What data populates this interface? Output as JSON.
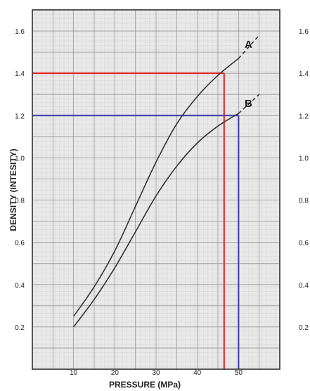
{
  "chart_data": {
    "type": "line",
    "xlabel": "PRESSURE (MPa)",
    "ylabel": "DENSITY (INTESITY)",
    "xlim": [
      0,
      60
    ],
    "ylim": [
      0,
      1.7
    ],
    "x_ticks": [
      {
        "value": 10,
        "label": "10"
      },
      {
        "value": 20,
        "label": "20"
      },
      {
        "value": 30,
        "label": "30"
      },
      {
        "value": 40,
        "label": "40"
      },
      {
        "value": 50,
        "label": "50"
      }
    ],
    "y_ticks_left": [
      {
        "value": 0.2,
        "label": "0.2"
      },
      {
        "value": 0.4,
        "label": "0.4"
      },
      {
        "value": 0.6,
        "label": "0.6"
      },
      {
        "value": 0.8,
        "label": "0.8"
      },
      {
        "value": 1.0,
        "label": "1.0"
      },
      {
        "value": 1.2,
        "label": "1.2"
      },
      {
        "value": 1.4,
        "label": "1.4"
      },
      {
        "value": 1.6,
        "label": "1.6"
      }
    ],
    "y_ticks_right": [
      {
        "value": 0.2,
        "label": "0.2"
      },
      {
        "value": 0.4,
        "label": "0.4"
      },
      {
        "value": 0.6,
        "label": "0.6"
      },
      {
        "value": 0.8,
        "label": "0.8"
      },
      {
        "value": 1.0,
        "label": "1.0"
      },
      {
        "value": 1.2,
        "label": "1.2"
      },
      {
        "value": 1.4,
        "label": "1.4"
      },
      {
        "value": 1.6,
        "label": "1.6"
      }
    ],
    "grid": true,
    "series": [
      {
        "name": "A",
        "color": "#333333",
        "x": [
          10,
          15,
          20,
          25,
          30,
          35,
          40,
          45,
          50
        ],
        "y": [
          0.25,
          0.39,
          0.56,
          0.77,
          0.98,
          1.16,
          1.29,
          1.39,
          1.47
        ],
        "dashed_extension": {
          "x": [
            50,
            55
          ],
          "y": [
            1.47,
            1.58
          ]
        }
      },
      {
        "name": "B",
        "color": "#333333",
        "x": [
          10,
          15,
          20,
          25,
          30,
          35,
          40,
          45,
          50
        ],
        "y": [
          0.2,
          0.33,
          0.48,
          0.65,
          0.82,
          0.96,
          1.07,
          1.15,
          1.21
        ],
        "dashed_extension": {
          "x": [
            50,
            55
          ],
          "y": [
            1.21,
            1.3
          ]
        }
      }
    ],
    "reference_lines": [
      {
        "color": "#e02020",
        "x": 46.5,
        "y": 1.4
      },
      {
        "color": "#3a3aa8",
        "x": 50,
        "y": 1.2
      }
    ]
  }
}
